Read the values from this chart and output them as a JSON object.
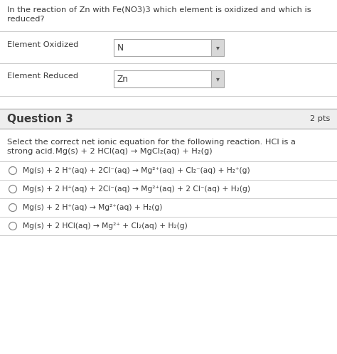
{
  "bg_color": "#ffffff",
  "text_color": "#3a3a3a",
  "line_color": "#cccccc",
  "q3_header_bg": "#eeeeee",
  "question_title": "Question 3",
  "question_pts": "2 pts",
  "part1_line1": "In the reaction of Zn with Fe(NO3)3 which element is oxidized and which is",
  "part1_line2": "reduced?",
  "label_oxidized": "Element Oxidized",
  "label_reduced": "Element Reduced",
  "value_oxidized": "N",
  "value_reduced": "Zn",
  "part2_intro1": "Select the correct net ionic equation for the following reaction. HCl is a",
  "part2_intro2a": "strong acid.",
  "part2_intro2b": "Mg(s) + 2 HCl(aq) → MgCl₂(aq) + H₂(g)",
  "options": [
    "Mg(s) + 2 H⁺(aq) + 2Cl⁻(aq) → Mg²⁺(aq) + Cl₂⁻(aq) + H₂⁺(g)",
    "Mg(s) + 2 H⁺(aq) + 2Cl⁻(aq) → Mg²⁺(aq) + 2 Cl⁻(aq) + H₂(g)",
    "Mg(s) + 2 H⁺(aq) → Mg²⁺(aq) + H₂(g)",
    "Mg(s) + 2 HCl(aq) → Mg²⁺ + Cl₂(aq) + H₂(g)"
  ],
  "figsize": [
    4.74,
    4.98
  ],
  "dpi": 100
}
